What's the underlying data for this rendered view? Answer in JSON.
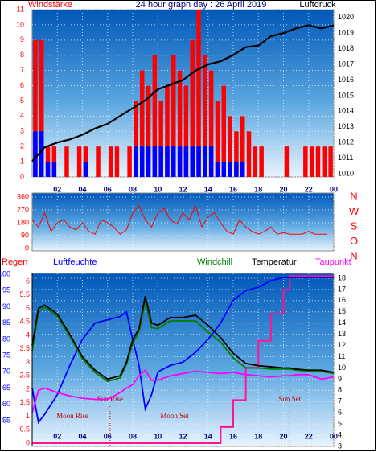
{
  "chart_data": [
    {
      "type": "bar",
      "title": "24 hour graph day : 26 April 2019",
      "x": [
        0,
        0.5,
        1,
        1.5,
        2,
        2.5,
        3,
        3.5,
        4,
        4.5,
        5,
        5.5,
        6,
        6.5,
        7,
        7.5,
        8,
        8.5,
        9,
        9.5,
        10,
        10.5,
        11,
        11.5,
        12,
        12.5,
        13,
        13.5,
        14,
        14.5,
        15,
        15.5,
        16,
        16.5,
        17,
        17.5,
        18,
        18.5,
        19,
        19.5,
        20,
        20.5,
        21,
        21.5,
        22,
        22.5,
        23,
        23.5
      ],
      "series": [
        {
          "name": "Windstärke",
          "color": "#ff0000",
          "values": [
            9,
            9,
            2,
            2,
            0,
            2,
            0,
            2,
            2,
            0,
            2,
            0,
            2,
            2,
            0,
            2,
            5,
            7,
            6,
            8,
            5,
            6,
            8,
            7,
            6,
            9,
            11,
            8,
            7,
            5,
            6,
            4,
            3,
            4,
            3,
            2,
            2,
            0,
            0,
            0,
            2,
            0,
            0,
            2,
            2,
            2,
            2,
            2
          ]
        },
        {
          "color": "#0000ff",
          "values": [
            3,
            3,
            1,
            1,
            0,
            0,
            0,
            0,
            1,
            0,
            0,
            0,
            0,
            0,
            0,
            0,
            2,
            2,
            2,
            2,
            2,
            2,
            2,
            2,
            2,
            2,
            2,
            2,
            2,
            1,
            1,
            1,
            1,
            1,
            0,
            0,
            0,
            0,
            0,
            0,
            0,
            0,
            0,
            0,
            0,
            0,
            0,
            0
          ]
        },
        {
          "name": "Luftdruck",
          "color": "#000000",
          "type": "line",
          "axis": "y2",
          "x": [
            0,
            1,
            2,
            3,
            4,
            5,
            6,
            7,
            8,
            9,
            10,
            11,
            12,
            13,
            14,
            15,
            16,
            17,
            18,
            19,
            20,
            21,
            22,
            23,
            24
          ],
          "values": [
            1010.8,
            1011.7,
            1012,
            1012.2,
            1012.5,
            1012.9,
            1013.2,
            1013.7,
            1014.2,
            1014.7,
            1015.4,
            1015.7,
            1016,
            1016.6,
            1017,
            1017.2,
            1017.6,
            1018.1,
            1018.2,
            1018.8,
            1019,
            1019.3,
            1019.5,
            1019.3,
            1019.5
          ]
        }
      ],
      "xlim": [
        0,
        24
      ],
      "xticks": [
        {
          "value": 2,
          "label": "02"
        },
        {
          "value": 4,
          "label": "04"
        },
        {
          "value": 6,
          "label": "06"
        },
        {
          "value": 8,
          "label": "08"
        },
        10,
        12,
        14,
        16,
        18,
        20,
        22,
        {
          "value": 24,
          "label": "00"
        }
      ],
      "ylim": [
        0,
        11
      ],
      "yticks": [
        0,
        1,
        2,
        3,
        4,
        5,
        6,
        7,
        8,
        9,
        10,
        11
      ],
      "y2lim": [
        1009.8,
        1020.5
      ],
      "y2ticks": [
        1010,
        1011,
        1012,
        1013,
        1014,
        1015,
        1016,
        1017,
        1018,
        1019,
        1020
      ],
      "grid": true
    },
    {
      "type": "line",
      "x": [
        0,
        0.5,
        1,
        1.5,
        2,
        2.5,
        3,
        3.5,
        4,
        4.5,
        5,
        5.5,
        6,
        6.5,
        7,
        7.5,
        8,
        8.5,
        9,
        9.5,
        10,
        10.5,
        11,
        11.5,
        12,
        12.5,
        13,
        13.5,
        14,
        14.5,
        15,
        15.5,
        16,
        16.5,
        17,
        17.5,
        18,
        18.5,
        19,
        19.5,
        20,
        20.5,
        21,
        21.5,
        22,
        22.5,
        23,
        23.5
      ],
      "series": [
        {
          "color": "#ff0000",
          "values": [
            200,
            150,
            250,
            120,
            180,
            200,
            150,
            130,
            180,
            120,
            100,
            200,
            180,
            150,
            100,
            130,
            250,
            300,
            200,
            150,
            250,
            280,
            200,
            170,
            250,
            200,
            300,
            150,
            220,
            250,
            180,
            120,
            100,
            200,
            150,
            120,
            100,
            120,
            150,
            100,
            110,
            100,
            100,
            100,
            120,
            100,
            100,
            100
          ]
        }
      ],
      "xlim": [
        0,
        24
      ],
      "ylim": [
        -17,
        388
      ],
      "yticks": [
        0,
        90,
        180,
        270,
        360
      ],
      "compass": [
        "N",
        "W",
        "S",
        "O",
        "N"
      ],
      "grid": true
    },
    {
      "type": "line",
      "x": [
        0,
        0.5,
        1,
        2,
        3,
        4,
        5,
        6,
        7,
        7.5,
        8,
        8.5,
        9,
        9.5,
        10,
        11,
        12,
        13,
        14,
        15,
        16,
        17,
        18,
        19,
        20,
        20.5,
        21,
        22,
        23,
        24
      ],
      "series": [
        {
          "name": "Regen",
          "color": "#ff1493",
          "axis": "rain",
          "step": true,
          "values": [
            0,
            0,
            0,
            0,
            0,
            0,
            0,
            0,
            0,
            0,
            0,
            0,
            0,
            0,
            0,
            0,
            0,
            0,
            0,
            0.6,
            1.6,
            2.8,
            3.8,
            4.8,
            5.7,
            6.2,
            6.2,
            6.2,
            6.2,
            6.2
          ]
        },
        {
          "name": "Luftfeuchte",
          "color": "#0000ff",
          "axis": "y",
          "values": [
            65,
            54.5,
            57,
            63,
            72,
            80,
            85,
            86,
            87,
            88.4,
            80,
            72,
            58.6,
            63,
            70,
            72,
            73,
            76,
            80,
            85,
            92,
            95,
            96,
            98,
            99,
            99,
            99,
            99,
            99,
            99
          ]
        },
        {
          "name": "Windchill",
          "color": "#008000",
          "axis": "y2",
          "values": [
            11.5,
            15,
            15.4,
            14.6,
            12.8,
            10.8,
            9.6,
            8.8,
            9.1,
            10.3,
            12.2,
            13.2,
            16,
            13.6,
            13.5,
            14.2,
            14.2,
            14.2,
            13.2,
            12.3,
            10.9,
            10,
            10,
            9.9,
            9.9,
            9.9,
            9.8,
            9.7,
            9.7,
            9.5
          ]
        },
        {
          "name": "Temperatur",
          "color": "#000000",
          "axis": "y2",
          "values": [
            12,
            15.3,
            15.6,
            14.8,
            13,
            11,
            9.8,
            9,
            9.3,
            10.5,
            12.5,
            13.5,
            16.4,
            14,
            13.8,
            14.5,
            14.5,
            14.7,
            13.8,
            12.7,
            11.3,
            10.4,
            10.2,
            10.1,
            10,
            10,
            9.9,
            9.8,
            9.8,
            9.6
          ]
        },
        {
          "name": "Taupunkt",
          "color": "#ff00ff",
          "axis": "y2",
          "values": [
            6,
            8,
            8.2,
            7.8,
            7.5,
            7.3,
            7.2,
            7.2,
            7.8,
            8.2,
            8.5,
            9.3,
            9.8,
            8.9,
            8.9,
            9.3,
            9.5,
            9.7,
            9.6,
            9.5,
            9.6,
            9.4,
            9.3,
            9.2,
            9.3,
            9.3,
            9.4,
            9.4,
            9,
            9.2
          ]
        }
      ],
      "xlim": [
        0,
        24
      ],
      "xticks": [
        {
          "value": 2,
          "label": "02"
        },
        {
          "value": 4,
          "label": "04"
        },
        {
          "value": 6,
          "label": "06"
        },
        {
          "value": 8,
          "label": "08"
        },
        10,
        12,
        14,
        16,
        18,
        20,
        22,
        {
          "value": 24,
          "label": "00"
        }
      ],
      "ylim": [
        47.1,
        100.25
      ],
      "yticks": [
        55,
        60,
        65,
        70,
        75,
        80,
        85,
        90,
        95,
        100
      ],
      "y2lim": [
        3,
        18.43
      ],
      "y2ticks": [
        3,
        4,
        5,
        6,
        7,
        8,
        9,
        10,
        11,
        12,
        13,
        14,
        15,
        16,
        17,
        18
      ],
      "rain_lim": [
        -0.12,
        6.3
      ],
      "rain_ticks": [
        0,
        0.5,
        1,
        1.5,
        2,
        2.5,
        3,
        3.5,
        4,
        4.5,
        5,
        5.5,
        6
      ],
      "annotations": [
        {
          "text": "Sun Rise",
          "x": 6.2
        },
        {
          "text": "Moon Rise"
        },
        {
          "text": "Moon Set"
        },
        {
          "text": "Sun Set",
          "x": 20.5
        }
      ],
      "grid": true
    }
  ]
}
